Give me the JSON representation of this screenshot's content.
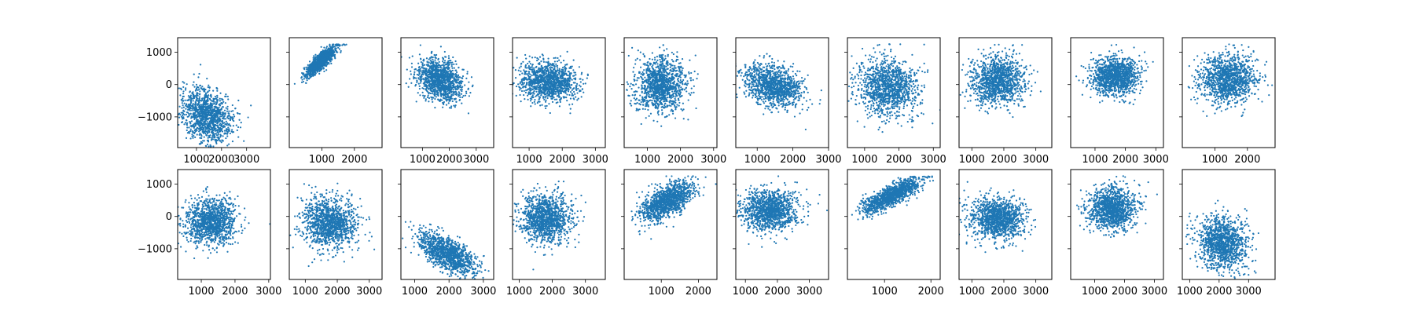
{
  "chart_data": {
    "type": "scatter",
    "layout": {
      "rows": 2,
      "cols": 10
    },
    "marker_color": "#1f77b4",
    "ylim": [
      -1950,
      1450
    ],
    "yticks": [
      1000,
      0,
      -1000
    ],
    "ytick_labels": [
      "1000",
      "0",
      "−1000"
    ],
    "panels": [
      {
        "xlim": [
          250,
          3950
        ],
        "xticks": [
          1000,
          2000,
          3000
        ],
        "xtick_labels": [
          "1000",
          "2000",
          "3000"
        ],
        "n": 1200,
        "cx": 1400,
        "sx": 520,
        "cy": -950,
        "sy": 420,
        "rho": -0.25,
        "ymax": 1250
      },
      {
        "xlim": [
          0,
          2850
        ],
        "xticks": [
          1000,
          2000
        ],
        "xtick_labels": [
          "1000",
          "2000"
        ],
        "n": 1200,
        "cx": 980,
        "sx": 230,
        "cy": 720,
        "sy": 230,
        "rho": 0.85,
        "ymax": 1250
      },
      {
        "xlim": [
          200,
          3650
        ],
        "xticks": [
          1000,
          2000,
          3000
        ],
        "xtick_labels": [
          "1000",
          "2000",
          "3000"
        ],
        "n": 1200,
        "cx": 1650,
        "sx": 420,
        "cy": 140,
        "sy": 330,
        "rho": -0.25,
        "ymax": 1250
      },
      {
        "xlim": [
          500,
          3300
        ],
        "xticks": [
          1000,
          2000,
          3000
        ],
        "xtick_labels": [
          "1000",
          "2000",
          "3000"
        ],
        "n": 1200,
        "cx": 1600,
        "sx": 420,
        "cy": 90,
        "sy": 300,
        "rho": -0.1,
        "ymax": 1250
      },
      {
        "xlim": [
          300,
          3100
        ],
        "xticks": [
          1000,
          2000,
          3000
        ],
        "xtick_labels": [
          "1000",
          "2000",
          "3000"
        ],
        "n": 1200,
        "cx": 1400,
        "sx": 380,
        "cy": 20,
        "sy": 420,
        "rho": 0.05,
        "ymax": 1250
      },
      {
        "xlim": [
          400,
          3000
        ],
        "xticks": [
          1000,
          2000,
          3000
        ],
        "xtick_labels": [
          "1000",
          "2000",
          "3000"
        ],
        "n": 1200,
        "cx": 1450,
        "sx": 400,
        "cy": -30,
        "sy": 330,
        "rho": -0.3,
        "ymax": 1250
      },
      {
        "xlim": [
          500,
          3200
        ],
        "xticks": [
          1000,
          2000,
          3000
        ],
        "xtick_labels": [
          "1000",
          "2000",
          "3000"
        ],
        "n": 1200,
        "cx": 1650,
        "sx": 420,
        "cy": -80,
        "sy": 450,
        "rho": -0.1,
        "ymax": 1250
      },
      {
        "xlim": [
          600,
          3500
        ],
        "xticks": [
          1000,
          2000,
          3000
        ],
        "xtick_labels": [
          "1000",
          "2000",
          "3000"
        ],
        "n": 1200,
        "cx": 1800,
        "sx": 420,
        "cy": 120,
        "sy": 400,
        "rho": 0.1,
        "ymax": 1250
      },
      {
        "xlim": [
          200,
          3250
        ],
        "xticks": [
          1000,
          2000,
          3000
        ],
        "xtick_labels": [
          "1000",
          "2000",
          "3000"
        ],
        "n": 1200,
        "cx": 1650,
        "sx": 400,
        "cy": 260,
        "sy": 300,
        "rho": -0.05,
        "ymax": 1250
      },
      {
        "xlim": [
          0,
          2850
        ],
        "xticks": [
          1000,
          2000
        ],
        "xtick_labels": [
          "1000",
          "2000"
        ],
        "n": 1200,
        "cx": 1400,
        "sx": 430,
        "cy": 180,
        "sy": 380,
        "rho": 0.05,
        "ymax": 1250
      },
      {
        "xlim": [
          300,
          3050
        ],
        "xticks": [
          1000,
          2000,
          3000
        ],
        "xtick_labels": [
          "1000",
          "2000",
          "3000"
        ],
        "n": 1200,
        "cx": 1300,
        "sx": 380,
        "cy": -170,
        "sy": 350,
        "rho": 0.05,
        "ymax": 1250
      },
      {
        "xlim": [
          500,
          3400
        ],
        "xticks": [
          1000,
          2000,
          3000
        ],
        "xtick_labels": [
          "1000",
          "2000",
          "3000"
        ],
        "n": 1200,
        "cx": 1750,
        "sx": 420,
        "cy": -200,
        "sy": 380,
        "rho": -0.1,
        "ymax": 1250
      },
      {
        "xlim": [
          600,
          3300
        ],
        "xticks": [
          1000,
          2000,
          3000
        ],
        "xtick_labels": [
          "1000",
          "2000",
          "3000"
        ],
        "n": 1200,
        "cx": 1950,
        "sx": 420,
        "cy": -1150,
        "sy": 330,
        "rho": -0.65,
        "ymax": 1250
      },
      {
        "xlim": [
          800,
          3600
        ],
        "xticks": [
          1000,
          2000,
          3000
        ],
        "xtick_labels": [
          "1000",
          "2000",
          "3000"
        ],
        "n": 1200,
        "cx": 1800,
        "sx": 380,
        "cy": -50,
        "sy": 380,
        "rho": 0.0,
        "ymax": 1250
      },
      {
        "xlim": [
          0,
          2500
        ],
        "xticks": [
          1000,
          2000
        ],
        "xtick_labels": [
          "1000",
          "2000"
        ],
        "n": 1200,
        "cx": 1150,
        "sx": 350,
        "cy": 480,
        "sy": 300,
        "rho": 0.6,
        "ymax": 1250
      },
      {
        "xlim": [
          700,
          3600
        ],
        "xticks": [
          1000,
          2000,
          3000
        ],
        "xtick_labels": [
          "1000",
          "2000",
          "3000"
        ],
        "n": 1200,
        "cx": 1750,
        "sx": 430,
        "cy": 200,
        "sy": 330,
        "rho": 0.0,
        "ymax": 1250
      },
      {
        "xlim": [
          200,
          2200
        ],
        "xticks": [
          1000,
          2000
        ],
        "xtick_labels": [
          "1000",
          "2000"
        ],
        "n": 1200,
        "cx": 1150,
        "sx": 300,
        "cy": 650,
        "sy": 250,
        "rho": 0.8,
        "ymax": 1250
      },
      {
        "xlim": [
          600,
          3500
        ],
        "xticks": [
          1000,
          2000,
          3000
        ],
        "xtick_labels": [
          "1000",
          "2000",
          "3000"
        ],
        "n": 1200,
        "cx": 1800,
        "sx": 420,
        "cy": -70,
        "sy": 320,
        "rho": -0.05,
        "ymax": 1250
      },
      {
        "xlim": [
          200,
          3300
        ],
        "xticks": [
          1000,
          2000,
          3000
        ],
        "xtick_labels": [
          "1000",
          "2000",
          "3000"
        ],
        "n": 1200,
        "cx": 1600,
        "sx": 400,
        "cy": 230,
        "sy": 330,
        "rho": 0.05,
        "ymax": 1250
      },
      {
        "xlim": [
          750,
          3900
        ],
        "xticks": [
          1000,
          2000,
          3000
        ],
        "xtick_labels": [
          "1000",
          "2000",
          "3000"
        ],
        "n": 1200,
        "cx": 2100,
        "sx": 420,
        "cy": -800,
        "sy": 420,
        "rho": -0.15,
        "ymax": 1250
      }
    ]
  }
}
